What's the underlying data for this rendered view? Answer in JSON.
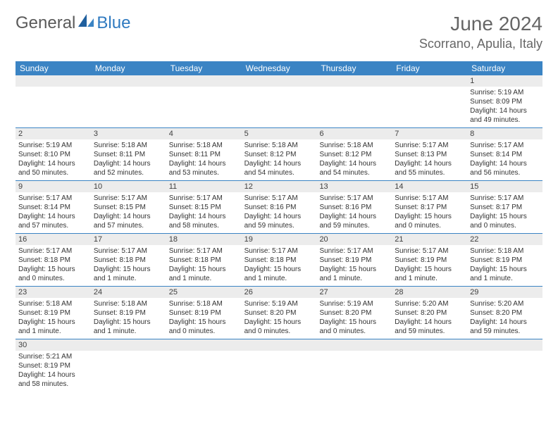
{
  "logo": {
    "general": "General",
    "blue": "Blue"
  },
  "title": "June 2024",
  "location": "Scorrano, Apulia, Italy",
  "colors": {
    "header_bg": "#3b84c4",
    "header_text": "#ffffff",
    "border": "#3b84c4",
    "daynum_bg": "#ececec",
    "text": "#333333"
  },
  "weekdays": [
    "Sunday",
    "Monday",
    "Tuesday",
    "Wednesday",
    "Thursday",
    "Friday",
    "Saturday"
  ],
  "weeks": [
    [
      null,
      null,
      null,
      null,
      null,
      null,
      {
        "n": "1",
        "r": "5:19 AM",
        "s": "8:09 PM",
        "d": "14 hours and 49 minutes."
      }
    ],
    [
      {
        "n": "2",
        "r": "5:19 AM",
        "s": "8:10 PM",
        "d": "14 hours and 50 minutes."
      },
      {
        "n": "3",
        "r": "5:18 AM",
        "s": "8:11 PM",
        "d": "14 hours and 52 minutes."
      },
      {
        "n": "4",
        "r": "5:18 AM",
        "s": "8:11 PM",
        "d": "14 hours and 53 minutes."
      },
      {
        "n": "5",
        "r": "5:18 AM",
        "s": "8:12 PM",
        "d": "14 hours and 54 minutes."
      },
      {
        "n": "6",
        "r": "5:18 AM",
        "s": "8:12 PM",
        "d": "14 hours and 54 minutes."
      },
      {
        "n": "7",
        "r": "5:17 AM",
        "s": "8:13 PM",
        "d": "14 hours and 55 minutes."
      },
      {
        "n": "8",
        "r": "5:17 AM",
        "s": "8:14 PM",
        "d": "14 hours and 56 minutes."
      }
    ],
    [
      {
        "n": "9",
        "r": "5:17 AM",
        "s": "8:14 PM",
        "d": "14 hours and 57 minutes."
      },
      {
        "n": "10",
        "r": "5:17 AM",
        "s": "8:15 PM",
        "d": "14 hours and 57 minutes."
      },
      {
        "n": "11",
        "r": "5:17 AM",
        "s": "8:15 PM",
        "d": "14 hours and 58 minutes."
      },
      {
        "n": "12",
        "r": "5:17 AM",
        "s": "8:16 PM",
        "d": "14 hours and 59 minutes."
      },
      {
        "n": "13",
        "r": "5:17 AM",
        "s": "8:16 PM",
        "d": "14 hours and 59 minutes."
      },
      {
        "n": "14",
        "r": "5:17 AM",
        "s": "8:17 PM",
        "d": "15 hours and 0 minutes."
      },
      {
        "n": "15",
        "r": "5:17 AM",
        "s": "8:17 PM",
        "d": "15 hours and 0 minutes."
      }
    ],
    [
      {
        "n": "16",
        "r": "5:17 AM",
        "s": "8:18 PM",
        "d": "15 hours and 0 minutes."
      },
      {
        "n": "17",
        "r": "5:17 AM",
        "s": "8:18 PM",
        "d": "15 hours and 1 minute."
      },
      {
        "n": "18",
        "r": "5:17 AM",
        "s": "8:18 PM",
        "d": "15 hours and 1 minute."
      },
      {
        "n": "19",
        "r": "5:17 AM",
        "s": "8:18 PM",
        "d": "15 hours and 1 minute."
      },
      {
        "n": "20",
        "r": "5:17 AM",
        "s": "8:19 PM",
        "d": "15 hours and 1 minute."
      },
      {
        "n": "21",
        "r": "5:17 AM",
        "s": "8:19 PM",
        "d": "15 hours and 1 minute."
      },
      {
        "n": "22",
        "r": "5:18 AM",
        "s": "8:19 PM",
        "d": "15 hours and 1 minute."
      }
    ],
    [
      {
        "n": "23",
        "r": "5:18 AM",
        "s": "8:19 PM",
        "d": "15 hours and 1 minute."
      },
      {
        "n": "24",
        "r": "5:18 AM",
        "s": "8:19 PM",
        "d": "15 hours and 1 minute."
      },
      {
        "n": "25",
        "r": "5:18 AM",
        "s": "8:19 PM",
        "d": "15 hours and 0 minutes."
      },
      {
        "n": "26",
        "r": "5:19 AM",
        "s": "8:20 PM",
        "d": "15 hours and 0 minutes."
      },
      {
        "n": "27",
        "r": "5:19 AM",
        "s": "8:20 PM",
        "d": "15 hours and 0 minutes."
      },
      {
        "n": "28",
        "r": "5:20 AM",
        "s": "8:20 PM",
        "d": "14 hours and 59 minutes."
      },
      {
        "n": "29",
        "r": "5:20 AM",
        "s": "8:20 PM",
        "d": "14 hours and 59 minutes."
      }
    ],
    [
      {
        "n": "30",
        "r": "5:21 AM",
        "s": "8:19 PM",
        "d": "14 hours and 58 minutes."
      },
      null,
      null,
      null,
      null,
      null,
      null
    ]
  ],
  "labels": {
    "sunrise": "Sunrise:",
    "sunset": "Sunset:",
    "daylight": "Daylight:"
  }
}
